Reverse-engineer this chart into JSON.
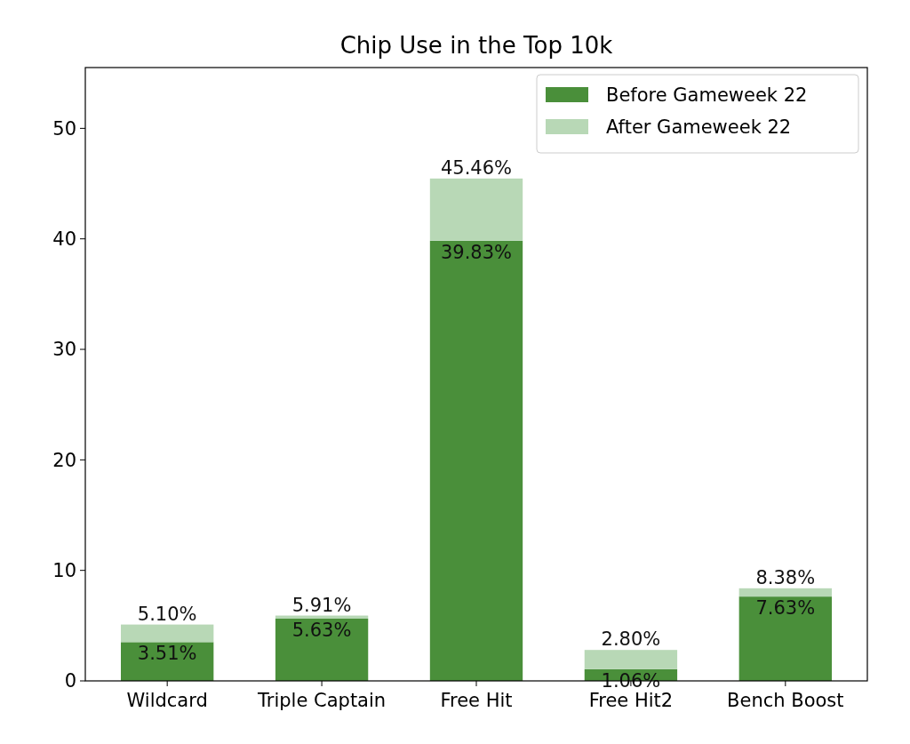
{
  "chart_data": {
    "type": "bar",
    "title": "Chip Use in the Top 10k",
    "categories": [
      "Wildcard",
      "Triple Captain",
      "Free Hit",
      "Free Hit2",
      "Bench Boost"
    ],
    "stacked": true,
    "totals": [
      "5.10%",
      "5.91%",
      "45.46%",
      "2.80%",
      "8.38%"
    ],
    "series": [
      {
        "name": "Before Gameweek 22",
        "color": "#4a8f3a",
        "values": [
          3.51,
          5.63,
          39.83,
          1.06,
          7.63
        ],
        "value_labels": [
          "3.51%",
          "5.63%",
          "39.83%",
          "1.06%",
          "7.63%"
        ]
      },
      {
        "name": "After Gameweek 22",
        "color": "#b8d8b6",
        "values": [
          1.59,
          0.28,
          5.63,
          1.74,
          0.75
        ]
      }
    ],
    "ylim": [
      0,
      55.5
    ],
    "yticks": [
      0,
      10,
      20,
      30,
      40,
      50
    ],
    "grid": false,
    "legend": "top right"
  }
}
